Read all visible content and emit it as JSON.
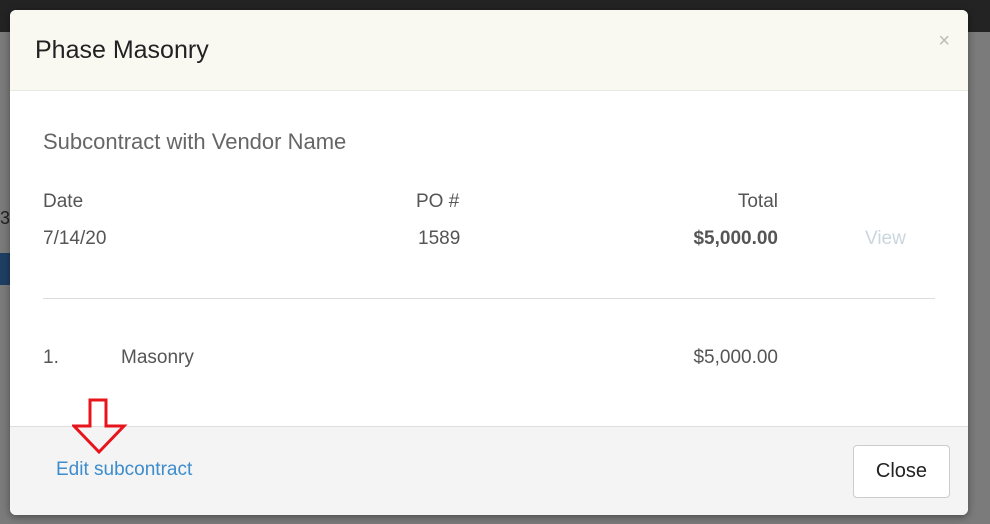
{
  "background": {
    "partial_text": "3"
  },
  "modal": {
    "title": "Phase Masonry",
    "close_icon": "×",
    "subtitle": "Subcontract with Vendor Name",
    "columns": {
      "date": "Date",
      "po": "PO #",
      "total": "Total"
    },
    "row": {
      "date": "7/14/20",
      "po": "1589",
      "total": "$5,000.00",
      "view": "View"
    },
    "line_items": [
      {
        "number": "1.",
        "name": "Masonry",
        "amount": "$5,000.00"
      }
    ],
    "footer": {
      "edit_link": "Edit subcontract",
      "close_button": "Close"
    }
  },
  "annotation": {
    "arrow_color": "#e8141c"
  }
}
